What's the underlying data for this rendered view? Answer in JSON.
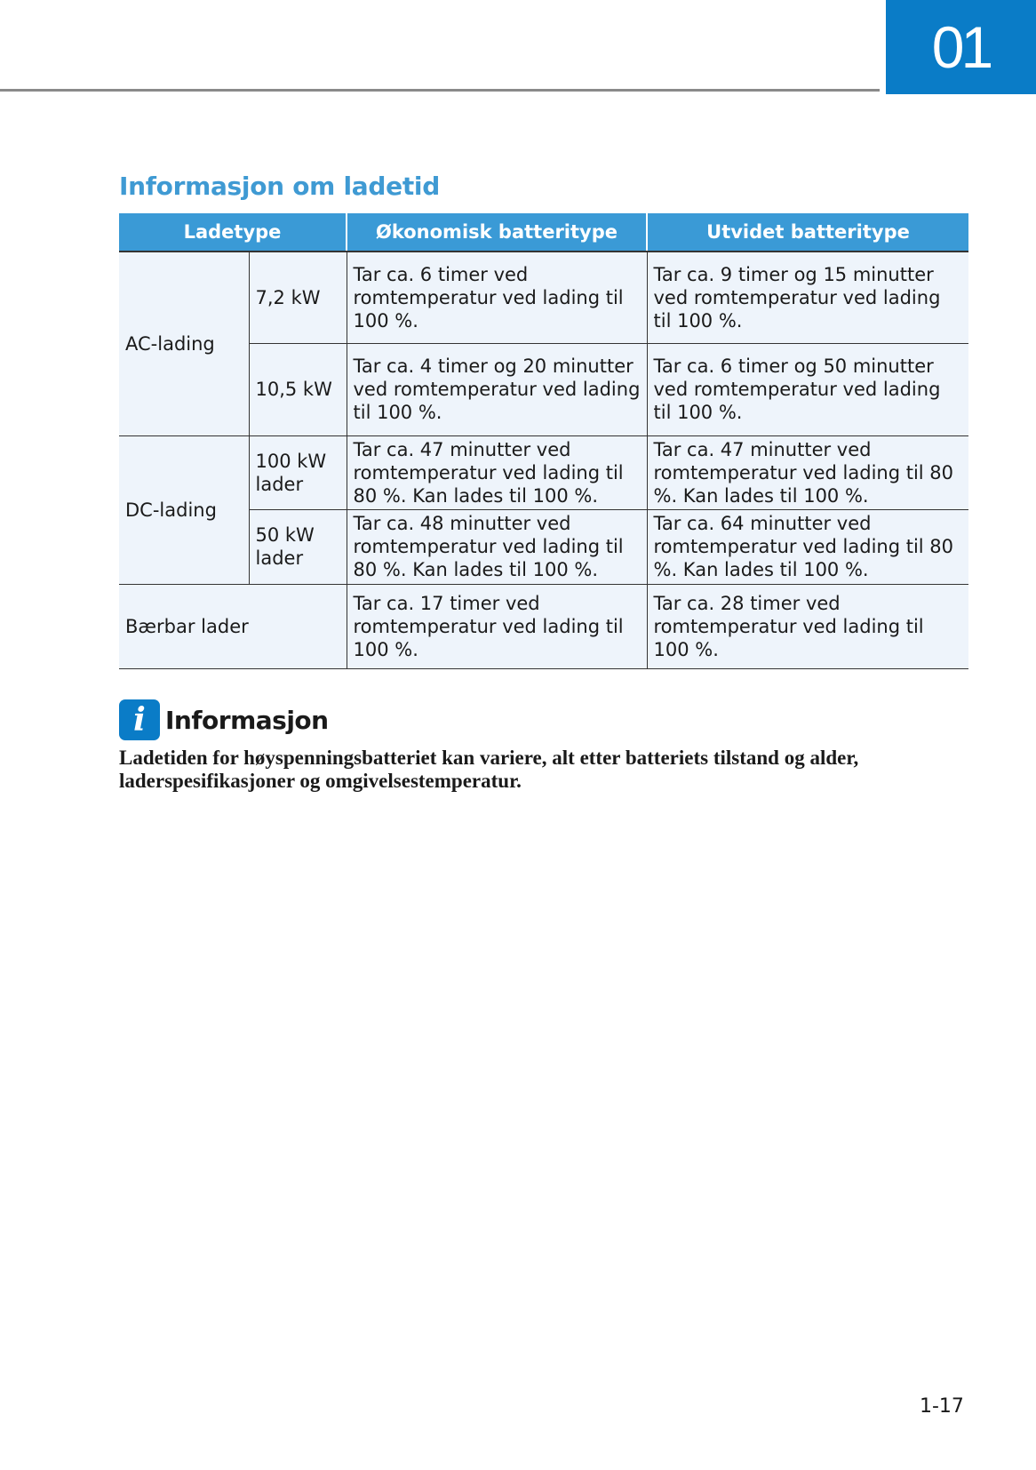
{
  "header": {
    "chapter": "01",
    "chapter_color": "#0a7cc7"
  },
  "section_title": "Informasjon om ladetid",
  "table": {
    "headers": [
      "Ladetype",
      "Økonomisk batteritype",
      "Utvidet batteritype"
    ],
    "groups": [
      {
        "type": "AC-lading",
        "rows": [
          {
            "power": "7,2 kW",
            "eco": "Tar ca. 6 timer ved romtemperatur ved lading til 100 %.",
            "ext": "Tar ca. 9 timer og 15 minutter ved romtemperatur ved lading til 100 %."
          },
          {
            "power": "10,5 kW",
            "eco": "Tar ca. 4 timer og 20 minutter ved romtemperatur ved lading til 100 %.",
            "ext": "Tar ca. 6 timer og 50 minutter ved romtemperatur ved lading til 100 %."
          }
        ]
      },
      {
        "type": "DC-lading",
        "rows": [
          {
            "power": "100 kW lader",
            "eco": "Tar ca. 47 minutter ved romtemperatur ved lading til 80 %. Kan lades til 100 %.",
            "ext": "Tar ca. 47 minutter ved romtemperatur ved lading til 80 %. Kan lades til 100 %."
          },
          {
            "power": "50 kW lader",
            "eco": "Tar ca. 48 minutter ved romtemperatur ved lading til 80 %. Kan lades til 100 %.",
            "ext": "Tar ca. 64 minutter ved romtemperatur ved lading til 80 %. Kan lades til 100 %."
          }
        ]
      },
      {
        "type": "Bærbar lader",
        "rows": [
          {
            "eco": "Tar ca. 17 timer ved romtemperatur ved lading til 100 %.",
            "ext": "Tar ca. 28 timer ved romtemperatur ved lading til 100 %."
          }
        ]
      }
    ]
  },
  "info": {
    "icon": "info-icon",
    "heading": "Informasjon",
    "text": "Ladetiden for høyspenningsbatteriet kan variere, alt etter batteriets tilstand og alder, laderspesifikasjoner og omgivelsestemperatur."
  },
  "footer": {
    "page_number": "1-17"
  }
}
